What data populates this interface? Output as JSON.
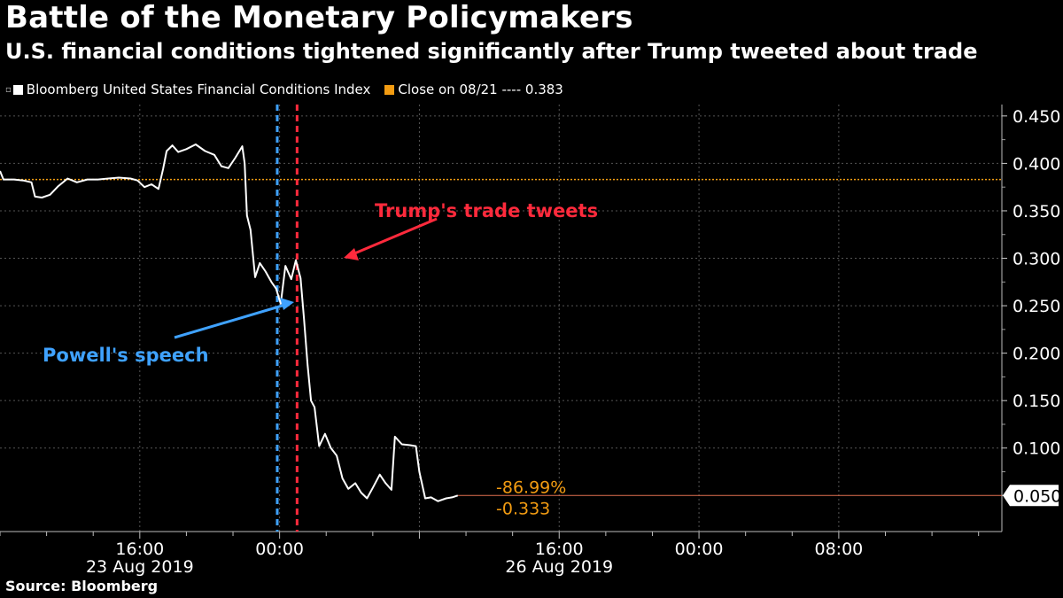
{
  "header": {
    "title": "Battle of the Monetary Policymakers",
    "subtitle": "U.S. financial conditions tightened significantly after Trump tweeted about trade"
  },
  "legend": {
    "series_label": "Bloomberg United States Financial Conditions Index",
    "close_label": "Close on 08/21 ---- 0.383"
  },
  "source": "Source: Bloomberg",
  "colors": {
    "line": "#ffffff",
    "close": "#f39c12",
    "powell": "#3fa2ff",
    "trump": "#ff2a3c",
    "grid": "#555555"
  },
  "chart_data": {
    "type": "line",
    "title": "Battle of the Monetary Policymakers",
    "ylabel": "",
    "xlabel": "",
    "ylim": [
      0.012,
      0.462
    ],
    "xlim": [
      0,
      86
    ],
    "yticks": [
      0.05,
      0.1,
      0.15,
      0.2,
      0.25,
      0.3,
      0.35,
      0.4,
      0.45
    ],
    "ytick_labels": [
      "0.050",
      "0.100",
      "0.150",
      "0.200",
      "0.250",
      "0.300",
      "0.350",
      "0.400",
      "0.450"
    ],
    "xticks": [
      {
        "x": 12,
        "label": "16:00",
        "date": "23 Aug 2019"
      },
      {
        "x": 24,
        "label": "00:00",
        "date": ""
      },
      {
        "x": 48,
        "label": "16:00",
        "date": "26 Aug 2019"
      },
      {
        "x": 60,
        "label": "00:00",
        "date": ""
      },
      {
        "x": 72,
        "label": "08:00",
        "date": ""
      }
    ],
    "reference_line": {
      "label": "Close on 08/21",
      "value": 0.383
    },
    "last_value": {
      "value": 0.05,
      "label": "0.050",
      "pct_change": "-86.99%",
      "change": "-0.333"
    },
    "events": [
      {
        "name": "Powell's speech",
        "x": 23.8
      },
      {
        "name": "Trump's trade tweets",
        "x": 25.5
      }
    ],
    "series": [
      {
        "name": "Bloomberg United States Financial Conditions Index",
        "points": [
          [
            0.0,
            0.392
          ],
          [
            0.3,
            0.383
          ],
          [
            1.2,
            0.383
          ],
          [
            2.0,
            0.382
          ],
          [
            2.7,
            0.38
          ],
          [
            3.0,
            0.365
          ],
          [
            3.6,
            0.364
          ],
          [
            4.3,
            0.367
          ],
          [
            5.0,
            0.376
          ],
          [
            5.8,
            0.384
          ],
          [
            6.6,
            0.38
          ],
          [
            7.5,
            0.383
          ],
          [
            8.4,
            0.383
          ],
          [
            9.3,
            0.384
          ],
          [
            10.2,
            0.385
          ],
          [
            11.2,
            0.384
          ],
          [
            11.8,
            0.382
          ],
          [
            12.4,
            0.375
          ],
          [
            13.0,
            0.378
          ],
          [
            13.6,
            0.373
          ],
          [
            14.0,
            0.394
          ],
          [
            14.3,
            0.413
          ],
          [
            14.8,
            0.419
          ],
          [
            15.3,
            0.412
          ],
          [
            16.0,
            0.415
          ],
          [
            16.8,
            0.42
          ],
          [
            17.6,
            0.413
          ],
          [
            18.4,
            0.409
          ],
          [
            19.0,
            0.397
          ],
          [
            19.6,
            0.395
          ],
          [
            20.2,
            0.406
          ],
          [
            20.8,
            0.418
          ],
          [
            21.0,
            0.4
          ],
          [
            21.2,
            0.345
          ],
          [
            21.5,
            0.33
          ],
          [
            21.9,
            0.28
          ],
          [
            22.3,
            0.295
          ],
          [
            22.8,
            0.286
          ],
          [
            23.3,
            0.275
          ],
          [
            23.7,
            0.268
          ],
          [
            24.1,
            0.252
          ],
          [
            24.5,
            0.292
          ],
          [
            25.0,
            0.278
          ],
          [
            25.4,
            0.298
          ],
          [
            25.8,
            0.279
          ],
          [
            26.1,
            0.236
          ],
          [
            26.4,
            0.188
          ],
          [
            26.7,
            0.15
          ],
          [
            27.0,
            0.143
          ],
          [
            27.4,
            0.102
          ],
          [
            27.9,
            0.115
          ],
          [
            28.4,
            0.1
          ],
          [
            28.9,
            0.092
          ],
          [
            29.4,
            0.068
          ],
          [
            29.9,
            0.057
          ],
          [
            30.5,
            0.063
          ],
          [
            31.0,
            0.053
          ],
          [
            31.5,
            0.047
          ],
          [
            32.0,
            0.058
          ],
          [
            32.6,
            0.072
          ],
          [
            33.1,
            0.063
          ],
          [
            33.6,
            0.056
          ],
          [
            33.9,
            0.112
          ],
          [
            34.5,
            0.104
          ],
          [
            35.2,
            0.103
          ],
          [
            35.7,
            0.102
          ],
          [
            36.0,
            0.075
          ],
          [
            36.5,
            0.047
          ],
          [
            37.0,
            0.048
          ],
          [
            37.6,
            0.044
          ],
          [
            38.3,
            0.047
          ],
          [
            38.8,
            0.048
          ],
          [
            39.3,
            0.05
          ]
        ]
      }
    ]
  }
}
